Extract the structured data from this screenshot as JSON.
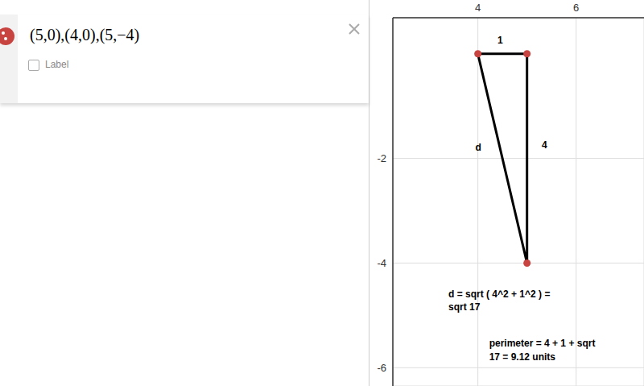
{
  "chart_data": {
    "type": "line",
    "xlim": [
      2.27,
      7.38
    ],
    "ylim": [
      -6.35,
      0.69
    ],
    "xticks": [
      4,
      6
    ],
    "yticks": [
      -6,
      -4,
      -2
    ],
    "grid": true,
    "series": [
      {
        "type": "line",
        "color": "#000000",
        "marker": "none",
        "x": [
          4,
          5,
          5,
          4
        ],
        "values": [
          0,
          0,
          -4,
          0
        ]
      },
      {
        "type": "scatter",
        "color": "#c74440",
        "marker": "circle",
        "x": [
          5,
          4,
          5
        ],
        "values": [
          0,
          0,
          -4
        ]
      }
    ],
    "annotations": [
      {
        "text": "1",
        "x": 4.4,
        "y": 0.2
      },
      {
        "text": "4",
        "x": 5.3,
        "y": -1.8
      },
      {
        "text": "d",
        "x": 3.95,
        "y": -1.85
      },
      {
        "text": "d = sqrt ( 4^2 + 1^2 ) =",
        "x": 3.4,
        "y": -4.65
      },
      {
        "text": "sqrt 17",
        "x": 3.4,
        "y": -4.9
      },
      {
        "text": "perimeter = 4 + 1 + sqrt",
        "x": 4.23,
        "y": -5.6
      },
      {
        "text": "17 = 9.12 units",
        "x": 4.23,
        "y": -5.85
      }
    ]
  },
  "expression_panel": {
    "expression": "(5,0),(4,0),(5,−4)",
    "checkbox_label": "Label"
  }
}
